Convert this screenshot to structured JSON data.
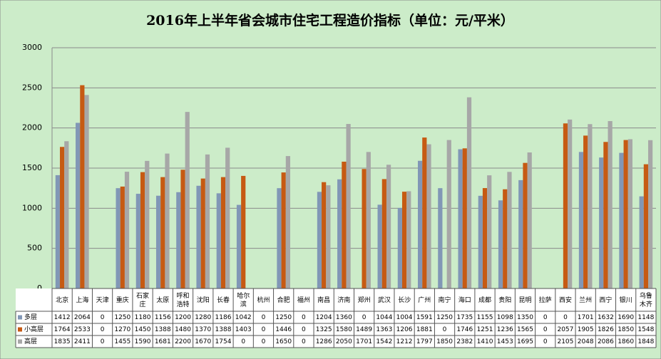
{
  "chart_data": {
    "type": "bar",
    "title": "2016年上半年省会城市住宅工程造价指标（单位：元/平米）",
    "categories": [
      "北京",
      "上海",
      "天津",
      "重庆",
      "石家庄",
      "太原",
      "呼和浩特",
      "沈阳",
      "长春",
      "哈尔滨",
      "杭州",
      "合肥",
      "福州",
      "南昌",
      "济南",
      "郑州",
      "武汉",
      "长沙",
      "广州",
      "南宁",
      "海口",
      "成都",
      "贵阳",
      "昆明",
      "拉萨",
      "西安",
      "兰州",
      "西宁",
      "银川",
      "乌鲁木齐"
    ],
    "series": [
      {
        "name": "多层",
        "color": "#8197b6",
        "values": [
          1412,
          2064,
          0,
          1250,
          1180,
          1156,
          1200,
          1280,
          1186,
          1042,
          0,
          1250,
          0,
          1204,
          1360,
          0,
          1044,
          1004,
          1591,
          1250,
          1735,
          1155,
          1098,
          1350,
          0,
          0,
          1701,
          1632,
          1690,
          1148
        ]
      },
      {
        "name": "小高层",
        "color": "#c65a13",
        "values": [
          1764,
          2533,
          0,
          1270,
          1450,
          1388,
          1480,
          1370,
          1388,
          1403,
          0,
          1446,
          0,
          1325,
          1580,
          1489,
          1363,
          1206,
          1881,
          0,
          1746,
          1251,
          1236,
          1565,
          0,
          2057,
          1905,
          1826,
          1850,
          1548
        ]
      },
      {
        "name": "高层",
        "color": "#a7a7a7",
        "values": [
          1835,
          2411,
          0,
          1455,
          1590,
          1681,
          2200,
          1670,
          1754,
          0,
          0,
          1650,
          0,
          1286,
          2050,
          1701,
          1542,
          1212,
          1797,
          1850,
          2382,
          1410,
          1453,
          1695,
          0,
          2105,
          2048,
          2086,
          1860,
          1848
        ]
      }
    ],
    "ylim": [
      0,
      3000
    ],
    "yticks": [
      0,
      500,
      1000,
      1500,
      2000,
      2500,
      3000
    ],
    "grid": true
  }
}
